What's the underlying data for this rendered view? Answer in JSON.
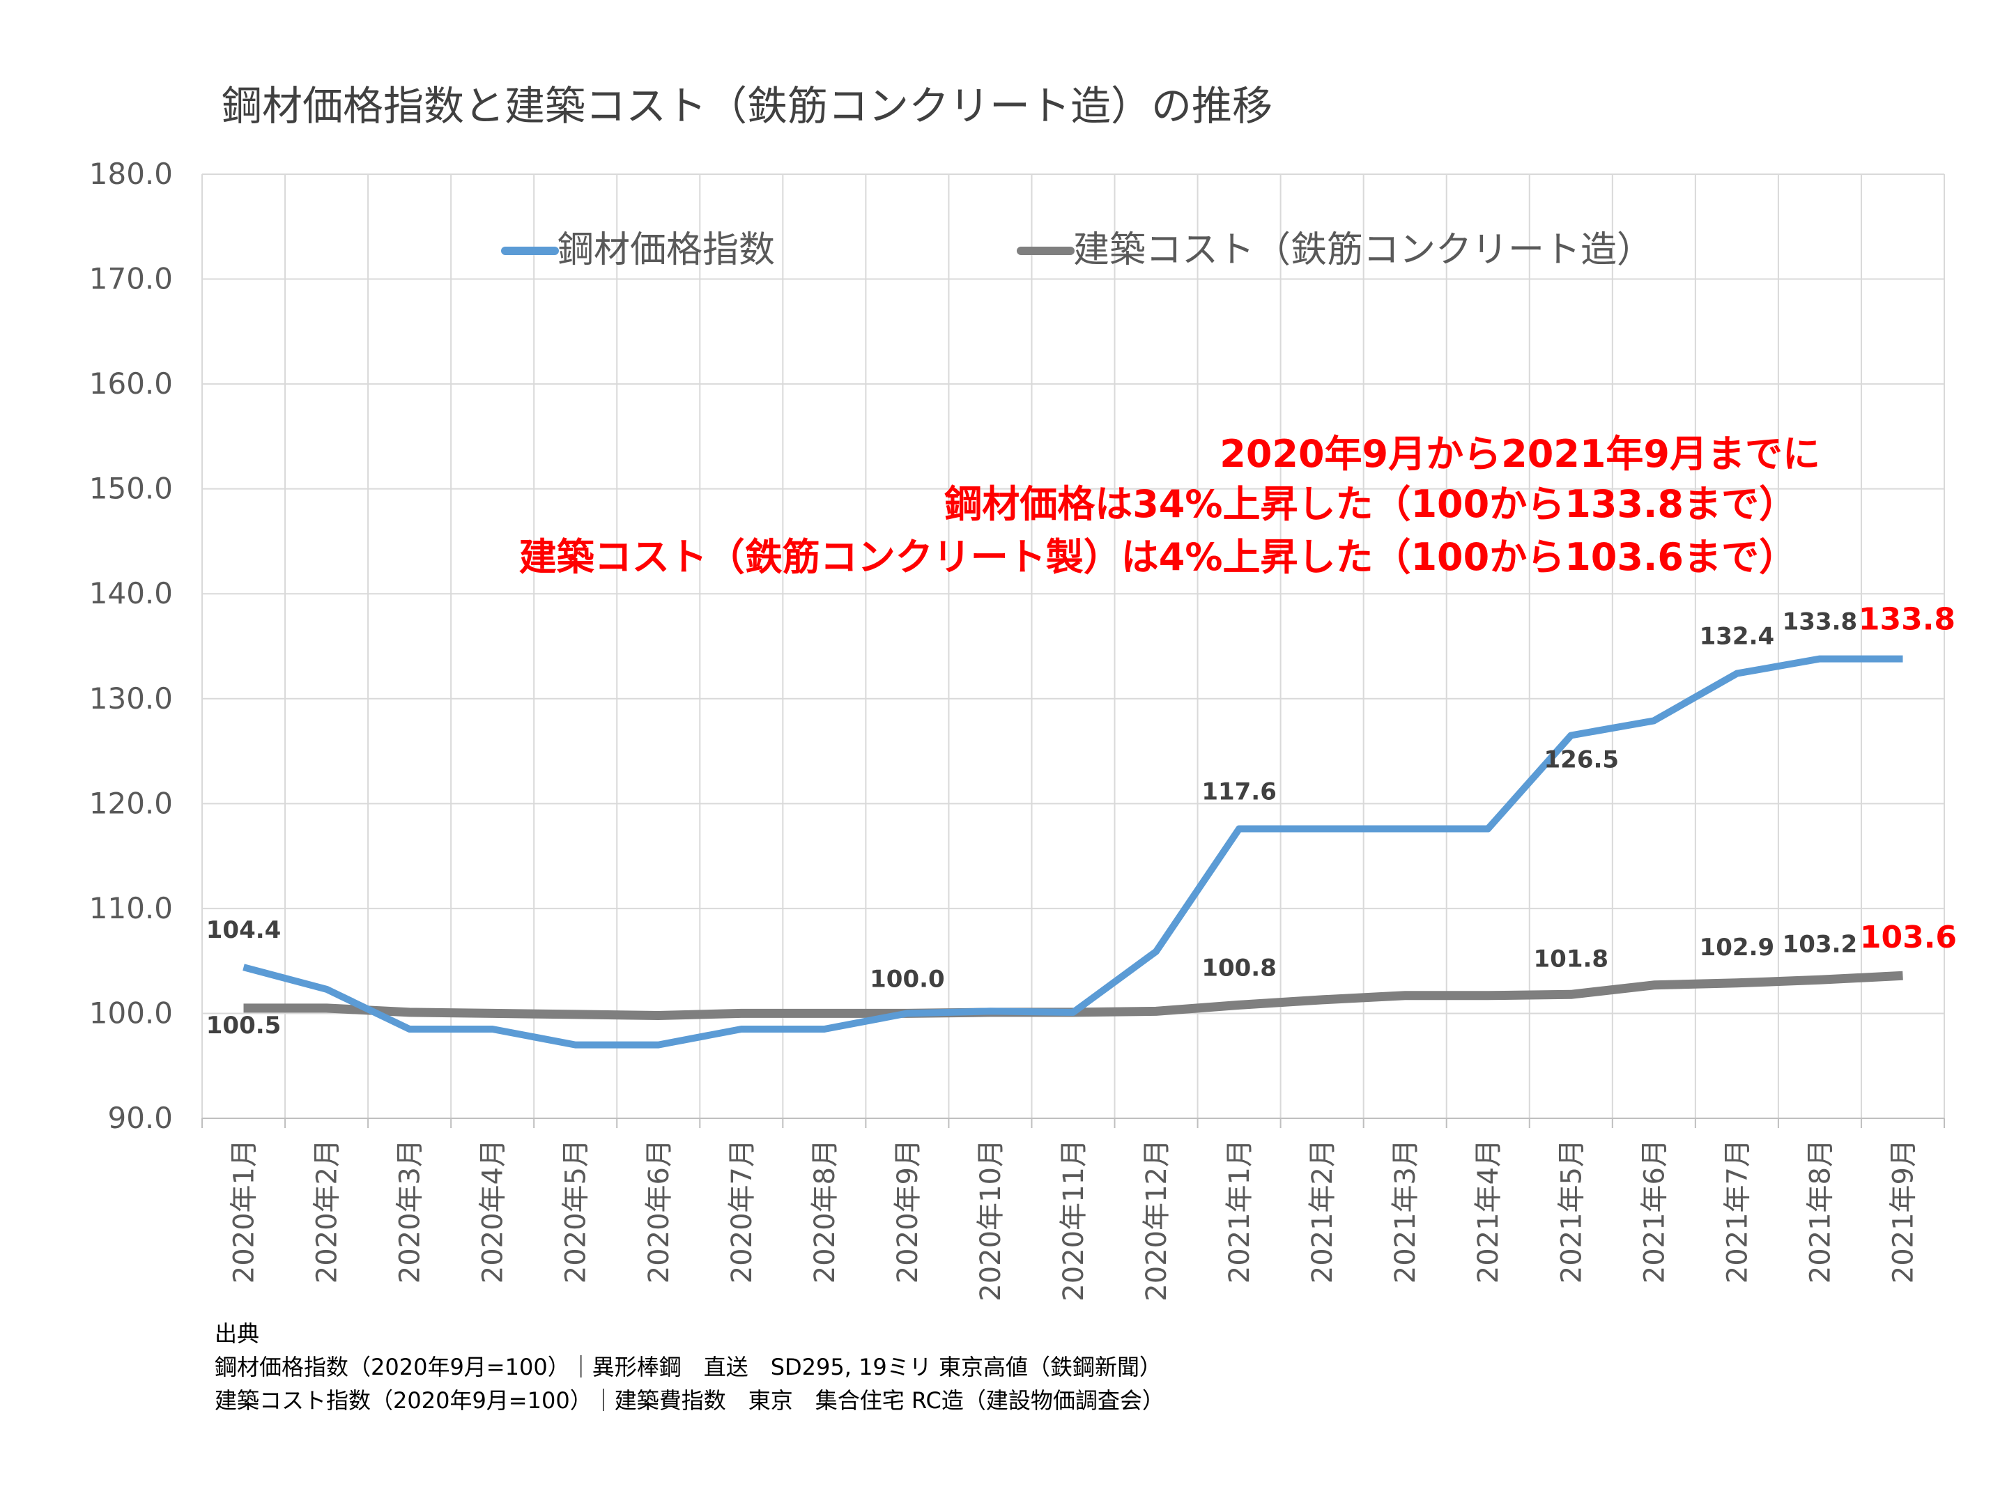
{
  "chart_data": {
    "type": "line",
    "title": "鋼材価格指数と建築コスト（鉄筋コンクリート造）の推移",
    "categories": [
      "2020年1月",
      "2020年2月",
      "2020年3月",
      "2020年4月",
      "2020年5月",
      "2020年6月",
      "2020年7月",
      "2020年8月",
      "2020年9月",
      "2020年10月",
      "2020年11月",
      "2020年12月",
      "2021年1月",
      "2021年2月",
      "2021年3月",
      "2021年4月",
      "2021年5月",
      "2021年6月",
      "2021年7月",
      "2021年8月",
      "2021年9月"
    ],
    "ylim": [
      90,
      180
    ],
    "yticks": [
      "90.0",
      "100.0",
      "110.0",
      "120.0",
      "130.0",
      "140.0",
      "150.0",
      "160.0",
      "170.0",
      "180.0"
    ],
    "grid": true,
    "legend_position": "top",
    "series": [
      {
        "name": "鋼材価格指数",
        "color": "#5b9bd5",
        "values": [
          104.4,
          102.3,
          98.5,
          98.5,
          97.0,
          97.0,
          98.5,
          98.5,
          100.0,
          100.2,
          100.1,
          105.9,
          117.6,
          117.6,
          117.6,
          117.6,
          126.5,
          127.9,
          132.4,
          133.8,
          133.8
        ]
      },
      {
        "name": "建築コスト（鉄筋コンクリート造）",
        "color": "#7f7f7f",
        "values": [
          100.5,
          100.5,
          100.1,
          100.0,
          99.9,
          99.8,
          100.0,
          100.0,
          100.0,
          100.1,
          100.1,
          100.2,
          100.8,
          101.3,
          101.7,
          101.7,
          101.8,
          102.7,
          102.9,
          103.2,
          103.6
        ]
      }
    ],
    "data_labels": [
      {
        "series": 0,
        "index": 0,
        "text": "104.4",
        "style": "normal"
      },
      {
        "series": 1,
        "index": 0,
        "text": "100.5",
        "style": "normal"
      },
      {
        "series": 1,
        "index": 8,
        "text": "100.0",
        "style": "normal"
      },
      {
        "series": 0,
        "index": 12,
        "text": "117.6",
        "style": "normal"
      },
      {
        "series": 1,
        "index": 12,
        "text": "100.8",
        "style": "normal"
      },
      {
        "series": 0,
        "index": 16,
        "text": "126.5",
        "style": "normal"
      },
      {
        "series": 1,
        "index": 16,
        "text": "101.8",
        "style": "normal"
      },
      {
        "series": 0,
        "index": 18,
        "text": "132.4",
        "style": "normal"
      },
      {
        "series": 1,
        "index": 18,
        "text": "102.9",
        "style": "normal"
      },
      {
        "series": 0,
        "index": 19,
        "text": "133.8",
        "style": "normal"
      },
      {
        "series": 1,
        "index": 19,
        "text": "103.2",
        "style": "normal"
      },
      {
        "series": 0,
        "index": 20,
        "text": "133.8",
        "style": "red"
      },
      {
        "series": 1,
        "index": 20,
        "text": "103.6",
        "style": "red"
      }
    ],
    "annotations": [
      "2020年9月から2021年9月までに",
      "鋼材価格は34%上昇した（100から133.8まで）",
      "建築コスト（鉄筋コンクリート製）は4%上昇した（100から103.6まで）"
    ],
    "annotation_color": "#ff0000"
  },
  "source": {
    "heading": "出典",
    "lines": [
      "鋼材価格指数（2020年9月=100）｜異形棒鋼　直送　SD295, 19ミリ 東京高値（鉄鋼新聞）",
      "建築コスト指数（2020年9月=100）｜建築費指数　東京　集合住宅 RC造（建設物価調査会）"
    ]
  }
}
